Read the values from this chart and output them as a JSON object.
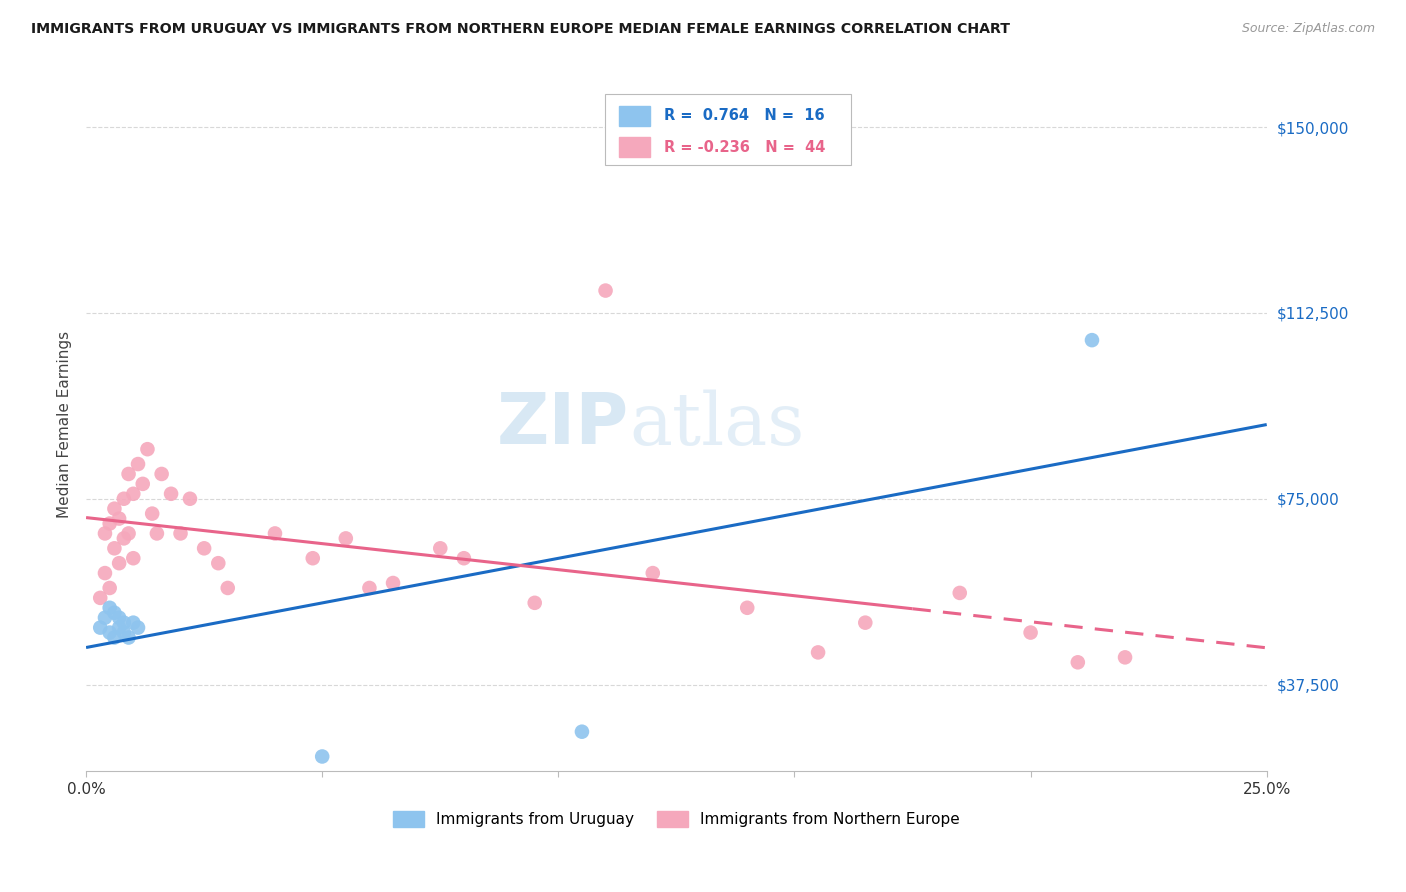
{
  "title": "IMMIGRANTS FROM URUGUAY VS IMMIGRANTS FROM NORTHERN EUROPE MEDIAN FEMALE EARNINGS CORRELATION CHART",
  "source": "Source: ZipAtlas.com",
  "ylabel": "Median Female Earnings",
  "xlim": [
    0.0,
    0.25
  ],
  "ylim": [
    20000,
    160000
  ],
  "yticks": [
    37500,
    75000,
    112500,
    150000
  ],
  "xticks": [
    0.0,
    0.05,
    0.1,
    0.15,
    0.2,
    0.25
  ],
  "xtick_labels": [
    "0.0%",
    "",
    "",
    "",
    "",
    "25.0%"
  ],
  "ytick_labels": [
    "$37,500",
    "$75,000",
    "$112,500",
    "$150,000"
  ],
  "series1_color": "#8EC4EE",
  "series2_color": "#F5A8BC",
  "series1_line_color": "#1A6BC4",
  "series2_line_color": "#E8648A",
  "legend_label1": "Immigrants from Uruguay",
  "legend_label2": "Immigrants from Northern Europe",
  "watermark_zip": "ZIP",
  "watermark_atlas": "atlas",
  "series1_x": [
    0.003,
    0.004,
    0.005,
    0.005,
    0.006,
    0.006,
    0.007,
    0.007,
    0.008,
    0.008,
    0.009,
    0.01,
    0.011,
    0.05,
    0.105,
    0.213
  ],
  "series1_y": [
    49000,
    51000,
    48000,
    53000,
    47000,
    52000,
    49000,
    51000,
    50000,
    48000,
    47000,
    50000,
    49000,
    23000,
    28000,
    107000
  ],
  "series2_x": [
    0.003,
    0.004,
    0.004,
    0.005,
    0.005,
    0.006,
    0.006,
    0.007,
    0.007,
    0.008,
    0.008,
    0.009,
    0.009,
    0.01,
    0.01,
    0.011,
    0.012,
    0.013,
    0.014,
    0.015,
    0.016,
    0.018,
    0.02,
    0.022,
    0.025,
    0.028,
    0.03,
    0.04,
    0.048,
    0.055,
    0.06,
    0.065,
    0.075,
    0.08,
    0.095,
    0.11,
    0.12,
    0.14,
    0.155,
    0.165,
    0.185,
    0.2,
    0.21,
    0.22
  ],
  "series2_y": [
    55000,
    60000,
    68000,
    57000,
    70000,
    65000,
    73000,
    62000,
    71000,
    67000,
    75000,
    80000,
    68000,
    76000,
    63000,
    82000,
    78000,
    85000,
    72000,
    68000,
    80000,
    76000,
    68000,
    75000,
    65000,
    62000,
    57000,
    68000,
    63000,
    67000,
    57000,
    58000,
    65000,
    63000,
    54000,
    117000,
    60000,
    53000,
    44000,
    50000,
    56000,
    48000,
    42000,
    43000
  ],
  "background_color": "#ffffff",
  "grid_color": "#d8d8d8"
}
